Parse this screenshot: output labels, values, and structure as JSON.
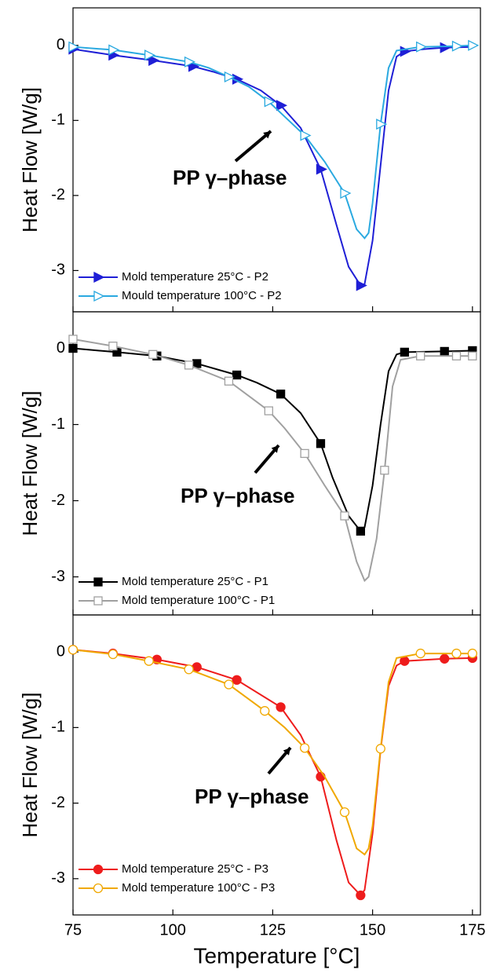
{
  "chart_data": [
    {
      "type": "line",
      "ylabel": "Heat Flow [W/g]",
      "annotation": "PP γ–phase",
      "legend": "lower left",
      "xlim": [
        75,
        177
      ],
      "xticks": [
        75,
        100,
        125,
        150,
        175
      ],
      "ylim": [
        -3.55,
        0.5
      ],
      "yticks": [
        0,
        -1,
        -2,
        -3
      ],
      "series": [
        {
          "name": "Mold temperature 25°C - P2",
          "color": "#1f1fd6",
          "marker": "triangle-right",
          "filled": true,
          "x": [
            75,
            85,
            95,
            105,
            110,
            116,
            122,
            127,
            132,
            137,
            141,
            144,
            147,
            148,
            150,
            152,
            154,
            156,
            158,
            163,
            168,
            175
          ],
          "values": [
            -0.05,
            -0.13,
            -0.2,
            -0.28,
            -0.35,
            -0.45,
            -0.6,
            -0.8,
            -1.1,
            -1.65,
            -2.4,
            -2.95,
            -3.2,
            -3.18,
            -2.6,
            -1.6,
            -0.6,
            -0.15,
            -0.08,
            -0.05,
            -0.03,
            -0.02
          ],
          "markers": {
            "x": [
              75,
              85,
              95,
              105,
              116,
              127,
              137,
              147,
              158,
              168
            ],
            "values": [
              -0.05,
              -0.13,
              -0.2,
              -0.28,
              -0.45,
              -0.8,
              -1.65,
              -3.2,
              -0.08,
              -0.03
            ]
          }
        },
        {
          "name": "Mould temperature 100°C - P2",
          "color": "#2aa9e0",
          "marker": "triangle-right",
          "filled": false,
          "x": [
            75,
            85,
            94,
            104,
            109,
            114,
            119,
            124,
            128,
            133,
            138,
            143,
            146,
            148,
            149,
            150,
            152,
            154,
            156,
            162,
            171,
            175
          ],
          "values": [
            -0.02,
            -0.06,
            -0.13,
            -0.22,
            -0.3,
            -0.42,
            -0.55,
            -0.75,
            -0.95,
            -1.2,
            -1.55,
            -1.97,
            -2.45,
            -2.57,
            -2.5,
            -2.1,
            -1.05,
            -0.3,
            -0.07,
            -0.02,
            -0.01,
            0
          ],
          "markers": {
            "x": [
              75,
              85,
              94,
              104,
              114,
              124,
              133,
              143,
              152,
              162,
              171,
              175
            ],
            "values": [
              -0.02,
              -0.06,
              -0.13,
              -0.22,
              -0.42,
              -0.75,
              -1.2,
              -1.97,
              -1.05,
              -0.02,
              -0.01,
              0
            ]
          }
        }
      ]
    },
    {
      "type": "line",
      "ylabel": "Heat Flow [W/g]",
      "annotation": "PP γ–phase",
      "legend": "lower left",
      "xlim": [
        75,
        177
      ],
      "xticks": [
        75,
        100,
        125,
        150,
        175
      ],
      "ylim": [
        -3.5,
        0.48
      ],
      "yticks": [
        0,
        -1,
        -2,
        -3
      ],
      "series": [
        {
          "name": "Mold temperature 25°C - P1",
          "color": "#000000",
          "marker": "square",
          "filled": true,
          "x": [
            75,
            86,
            96,
            106,
            116,
            121,
            127,
            132,
            137,
            140,
            144,
            147,
            148,
            150,
            152,
            154,
            156,
            158,
            168,
            175
          ],
          "values": [
            0,
            -0.05,
            -0.1,
            -0.2,
            -0.35,
            -0.45,
            -0.6,
            -0.85,
            -1.25,
            -1.7,
            -2.2,
            -2.4,
            -2.35,
            -1.8,
            -1.0,
            -0.3,
            -0.08,
            -0.05,
            -0.04,
            -0.03
          ],
          "markers": {
            "x": [
              75,
              86,
              96,
              106,
              116,
              127,
              137,
              147,
              158,
              168,
              175
            ],
            "values": [
              0,
              -0.05,
              -0.1,
              -0.2,
              -0.35,
              -0.6,
              -1.25,
              -2.4,
              -0.05,
              -0.04,
              -0.03
            ]
          }
        },
        {
          "name": "Mold temperature 100°C - P1",
          "color": "#a0a0a0",
          "marker": "square",
          "filled": false,
          "x": [
            75,
            85,
            95,
            104,
            114,
            124,
            128,
            133,
            138,
            143,
            146,
            148,
            149,
            151,
            153,
            155,
            157,
            162,
            171,
            175
          ],
          "values": [
            0.12,
            0.03,
            -0.08,
            -0.22,
            -0.43,
            -0.82,
            -1.05,
            -1.38,
            -1.8,
            -2.2,
            -2.8,
            -3.05,
            -3.0,
            -2.5,
            -1.6,
            -0.5,
            -0.15,
            -0.1,
            -0.1,
            -0.1
          ],
          "markers": {
            "x": [
              75,
              85,
              95,
              104,
              114,
              124,
              133,
              143,
              153,
              162,
              171,
              175
            ],
            "values": [
              0.12,
              0.03,
              -0.08,
              -0.22,
              -0.43,
              -0.82,
              -1.38,
              -2.2,
              -1.6,
              -0.1,
              -0.1,
              -0.1
            ]
          }
        }
      ]
    },
    {
      "type": "line",
      "ylabel": "Heat Flow [W/g]",
      "xlabel": "Temperature [°C]",
      "annotation": "PP γ–phase",
      "legend": "lower left",
      "xlim": [
        75,
        177
      ],
      "xticks": [
        75,
        100,
        125,
        150,
        175
      ],
      "ylim": [
        -3.48,
        0.49
      ],
      "yticks": [
        0,
        -1,
        -2,
        -3
      ],
      "series": [
        {
          "name": "Mold temperature 25°C - P3",
          "color": "#ee1c1c",
          "marker": "circle",
          "filled": true,
          "x": [
            75,
            85,
            96,
            106,
            116,
            127,
            132,
            137,
            141,
            144,
            147,
            148,
            150,
            152,
            154,
            156,
            158,
            168,
            175
          ],
          "values": [
            0.03,
            -0.02,
            -0.1,
            -0.2,
            -0.37,
            -0.73,
            -1.1,
            -1.65,
            -2.5,
            -3.05,
            -3.22,
            -3.15,
            -2.4,
            -1.3,
            -0.45,
            -0.18,
            -0.12,
            -0.09,
            -0.08
          ],
          "markers": {
            "x": [
              75,
              85,
              96,
              106,
              116,
              127,
              137,
              147,
              158,
              168,
              175
            ],
            "values": [
              0.03,
              -0.02,
              -0.1,
              -0.2,
              -0.37,
              -0.73,
              -1.65,
              -3.22,
              -0.12,
              -0.09,
              -0.08
            ]
          }
        },
        {
          "name": "Mold temperature 100°C - P3",
          "color": "#f0a800",
          "marker": "circle",
          "filled": false,
          "x": [
            75,
            85,
            94,
            104,
            114,
            123,
            128,
            133,
            138,
            143,
            146,
            148,
            149,
            150,
            152,
            154,
            156,
            162,
            171,
            175
          ],
          "values": [
            0.03,
            -0.03,
            -0.12,
            -0.23,
            -0.43,
            -0.78,
            -1.0,
            -1.27,
            -1.65,
            -2.12,
            -2.6,
            -2.68,
            -2.6,
            -2.3,
            -1.28,
            -0.4,
            -0.08,
            -0.02,
            -0.02,
            -0.02
          ],
          "markers": {
            "x": [
              75,
              85,
              94,
              104,
              114,
              123,
              133,
              143,
              152,
              162,
              171,
              175
            ],
            "values": [
              0.03,
              -0.03,
              -0.12,
              -0.23,
              -0.43,
              -0.78,
              -1.27,
              -2.12,
              -1.28,
              -0.02,
              -0.02,
              -0.02
            ]
          }
        }
      ]
    }
  ]
}
